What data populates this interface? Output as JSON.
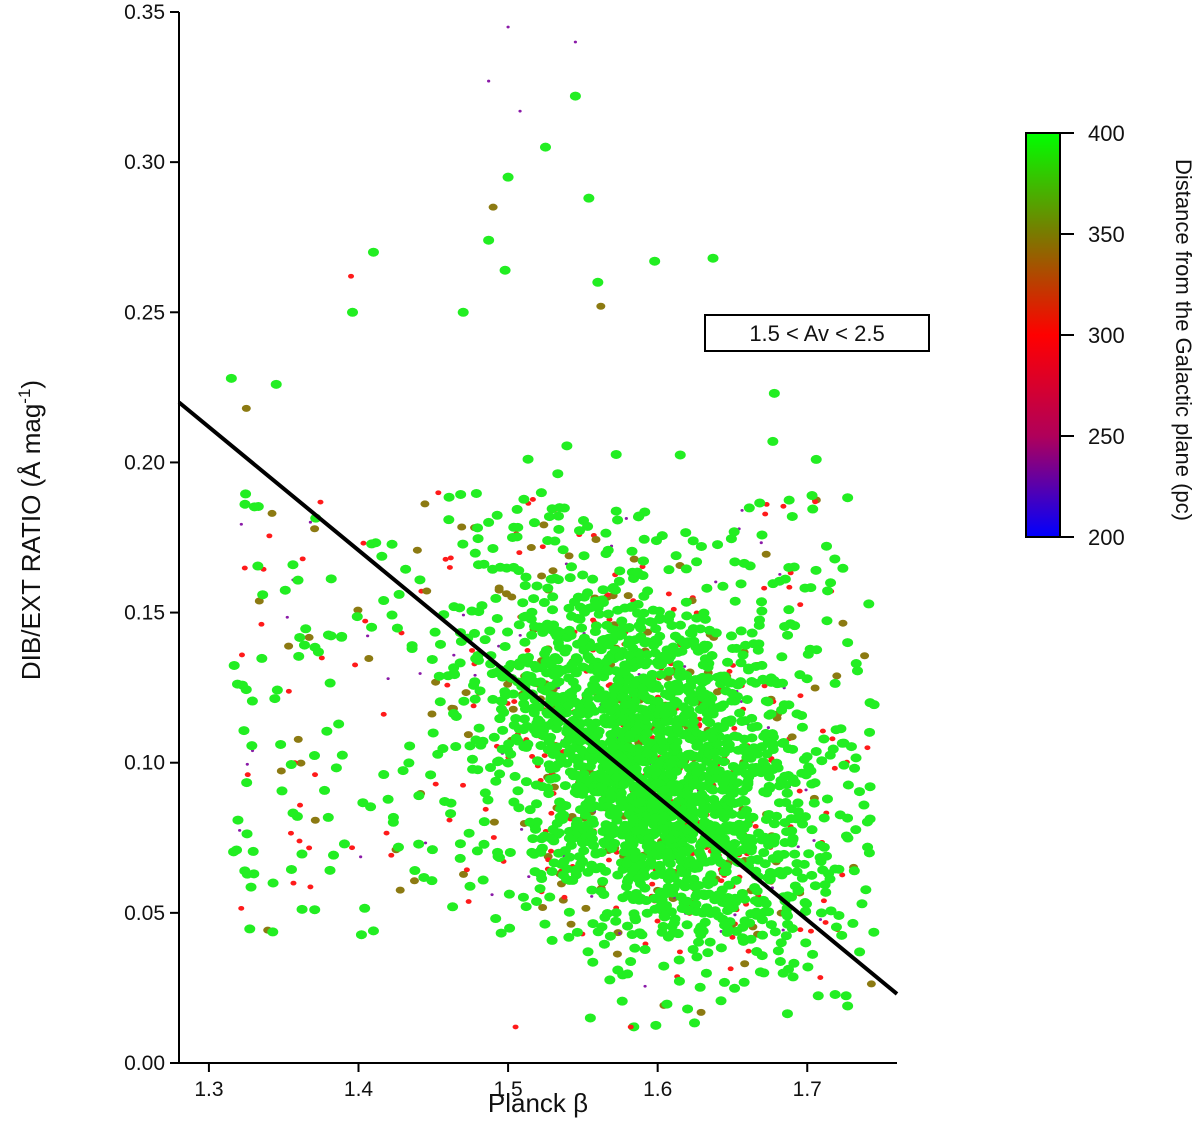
{
  "chart_data": {
    "type": "scatter",
    "xlabel": "Planck β",
    "ylabel": "DIB/EXT RATIO (Å mag",
    "ylabel_superscript": "-1",
    "ylabel_close": ")",
    "xlim": [
      1.28,
      1.76
    ],
    "ylim": [
      0.0,
      0.35
    ],
    "x_ticks": [
      "1.3",
      "1.4",
      "1.5",
      "1.6",
      "1.7"
    ],
    "y_ticks": [
      "0.00",
      "0.05",
      "0.10",
      "0.15",
      "0.20",
      "0.25",
      "0.30",
      "0.35"
    ],
    "annotation": "1.5 < Av < 2.5",
    "fit_line": {
      "x": [
        1.28,
        1.76
      ],
      "y": [
        0.22,
        0.023
      ]
    },
    "colorbar": {
      "title": "Distance from the Galactic plane (pc)",
      "range": [
        200,
        400
      ],
      "ticks": [
        "200",
        "250",
        "300",
        "350",
        "400"
      ],
      "colors": [
        "#0000ff",
        "#b0005a",
        "#ff0000",
        "#7a7a00",
        "#00ff00"
      ]
    },
    "marker_colors": {
      "near": "#ff1a1a",
      "mid": "#8c7a12",
      "far": "#22ee22",
      "low": "#8a1aa8"
    },
    "points_sample": [
      {
        "x": 1.315,
        "y": 0.228,
        "d": 390
      },
      {
        "x": 1.325,
        "y": 0.218,
        "d": 360
      },
      {
        "x": 1.345,
        "y": 0.226,
        "d": 390
      },
      {
        "x": 1.396,
        "y": 0.25,
        "d": 395
      },
      {
        "x": 1.41,
        "y": 0.27,
        "d": 395
      },
      {
        "x": 1.395,
        "y": 0.262,
        "d": 300
      },
      {
        "x": 1.47,
        "y": 0.25,
        "d": 395
      },
      {
        "x": 1.487,
        "y": 0.274,
        "d": 395
      },
      {
        "x": 1.49,
        "y": 0.285,
        "d": 350
      },
      {
        "x": 1.498,
        "y": 0.264,
        "d": 395
      },
      {
        "x": 1.5,
        "y": 0.295,
        "d": 395
      },
      {
        "x": 1.525,
        "y": 0.305,
        "d": 395
      },
      {
        "x": 1.545,
        "y": 0.322,
        "d": 395
      },
      {
        "x": 1.554,
        "y": 0.288,
        "d": 395
      },
      {
        "x": 1.5,
        "y": 0.345,
        "d": 280
      },
      {
        "x": 1.545,
        "y": 0.34,
        "d": 280
      },
      {
        "x": 1.487,
        "y": 0.327,
        "d": 260
      },
      {
        "x": 1.508,
        "y": 0.317,
        "d": 280
      },
      {
        "x": 1.598,
        "y": 0.267,
        "d": 395
      },
      {
        "x": 1.637,
        "y": 0.268,
        "d": 395
      },
      {
        "x": 1.56,
        "y": 0.26,
        "d": 395
      },
      {
        "x": 1.562,
        "y": 0.252,
        "d": 340
      },
      {
        "x": 1.678,
        "y": 0.223,
        "d": 395
      },
      {
        "x": 1.706,
        "y": 0.201,
        "d": 395
      },
      {
        "x": 1.677,
        "y": 0.207,
        "d": 395
      },
      {
        "x": 1.33,
        "y": 0.063,
        "d": 395
      },
      {
        "x": 1.324,
        "y": 0.064,
        "d": 395
      },
      {
        "x": 1.41,
        "y": 0.044,
        "d": 395
      },
      {
        "x": 1.727,
        "y": 0.019,
        "d": 395
      },
      {
        "x": 1.582,
        "y": 0.012,
        "d": 300
      },
      {
        "x": 1.505,
        "y": 0.012,
        "d": 300
      },
      {
        "x": 1.555,
        "y": 0.015,
        "d": 395
      },
      {
        "x": 1.62,
        "y": 0.018,
        "d": 395
      },
      {
        "x": 1.735,
        "y": 0.037,
        "d": 395
      },
      {
        "x": 1.742,
        "y": 0.092,
        "d": 395
      },
      {
        "x": 1.742,
        "y": 0.12,
        "d": 395
      },
      {
        "x": 1.727,
        "y": 0.14,
        "d": 395
      },
      {
        "x": 1.69,
        "y": 0.182,
        "d": 395
      }
    ]
  }
}
